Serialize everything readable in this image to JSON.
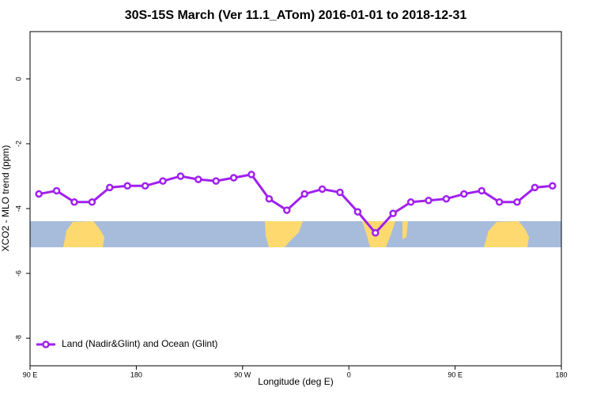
{
  "chart_data": {
    "type": "line",
    "title": "30S-15S March (Ver 11.1_ATom)   2016-01-01 to 2018-12-31",
    "x_label": "Longitude (deg E)",
    "y_label": "XCO2 - MLO trend (ppm)",
    "x": [
      97.5,
      112.5,
      127.5,
      142.5,
      157.5,
      172.5,
      187.5,
      202.5,
      217.5,
      232.5,
      247.5,
      262.5,
      277.5,
      292.5,
      307.5,
      322.5,
      337.5,
      352.5,
      367.5,
      382.5,
      397.5,
      412.5,
      427.5,
      442.5,
      457.5,
      472.5,
      487.5,
      502.5,
      517.5,
      532.5
    ],
    "series": [
      {
        "name": "Land (Nadir&Glint) and Ocean (Glint)",
        "color": "#a020f0",
        "values": [
          -3.55,
          -3.45,
          -3.8,
          -3.8,
          -3.35,
          -3.3,
          -3.3,
          -3.15,
          -3.0,
          -3.1,
          -3.15,
          -3.05,
          -2.95,
          -3.7,
          -4.05,
          -3.55,
          -3.4,
          -3.5,
          -4.1,
          -4.75,
          -4.15,
          -3.8,
          -3.75,
          -3.7,
          -3.55,
          -3.45,
          -3.8,
          -3.8,
          -3.35,
          -3.3
        ]
      }
    ],
    "xlim": [
      90,
      540
    ],
    "xticks": [
      {
        "value": 90,
        "label": "90 E"
      },
      {
        "value": 180,
        "label": "180"
      },
      {
        "value": 270,
        "label": "90 W"
      },
      {
        "value": 360,
        "label": "0"
      },
      {
        "value": 450,
        "label": "90 E"
      },
      {
        "value": 540,
        "label": "180"
      }
    ],
    "ylim": [
      -8.85,
      1.46
    ],
    "yticks": [
      0,
      -2,
      -4,
      -6,
      -8
    ],
    "legend": "bottomleft"
  }
}
